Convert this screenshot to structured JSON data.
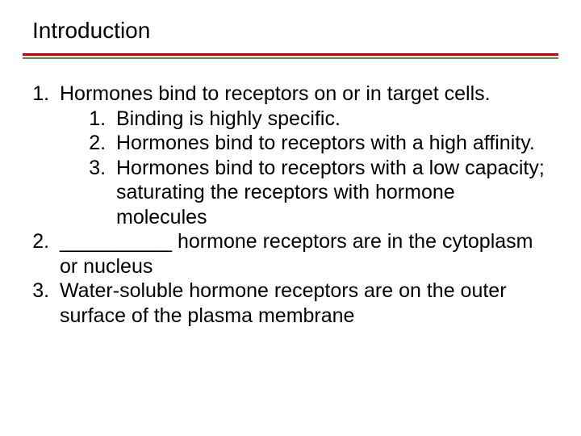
{
  "title": "Introduction",
  "colors": {
    "divider_top": "#c00000",
    "divider_bottom": "#4f8f4f",
    "text": "#000000",
    "background": "#ffffff"
  },
  "typography": {
    "title_fontsize": 28,
    "body_fontsize": 25,
    "font_family": "Arial"
  },
  "outline": {
    "items": [
      {
        "text": "Hormones bind to receptors on or in target cells.",
        "children": [
          {
            "text": "Binding is highly specific."
          },
          {
            "text": "Hormones bind to receptors with a high affinity."
          },
          {
            "text": "Hormones bind to receptors with a low capacity; saturating the receptors with hormone molecules"
          }
        ]
      },
      {
        "text": "__________ hormone receptors are in the cytoplasm or nucleus"
      },
      {
        "text": "Water-soluble hormone receptors are on the outer surface of the plasma membrane"
      }
    ]
  }
}
